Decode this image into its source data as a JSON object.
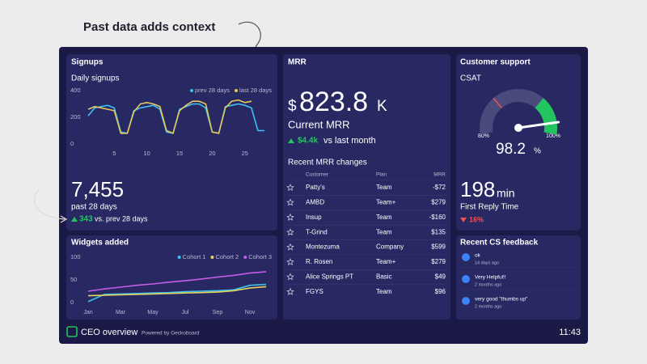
{
  "heading": "Past data adds context",
  "signups": {
    "title": "Signups",
    "subtitle": "Daily signups",
    "chart": {
      "type": "line",
      "x": [
        1,
        2,
        3,
        4,
        5,
        6,
        7,
        8,
        9,
        10,
        11,
        12,
        13,
        14,
        15,
        16,
        17,
        18,
        19,
        20,
        21,
        22,
        23,
        24,
        25,
        26,
        27,
        28
      ],
      "xlim": [
        1,
        28
      ],
      "xticks": [
        5,
        10,
        15,
        20,
        25
      ],
      "ylim": [
        0,
        400
      ],
      "yticks": [
        0,
        200,
        400
      ],
      "series": [
        {
          "name": "prev 28 days",
          "color": "#3ec1f0",
          "values": [
            210,
            270,
            280,
            290,
            270,
            90,
            80,
            250,
            270,
            280,
            290,
            260,
            90,
            80,
            260,
            280,
            300,
            300,
            270,
            90,
            80,
            280,
            290,
            300,
            290,
            270,
            100,
            100
          ]
        },
        {
          "name": "last 28 days",
          "color": "#e3c95c",
          "values": [
            260,
            280,
            270,
            260,
            250,
            80,
            80,
            240,
            300,
            310,
            300,
            280,
            100,
            80,
            250,
            290,
            320,
            320,
            300,
            90,
            80,
            270,
            320,
            330,
            310,
            320,
            null,
            null
          ]
        }
      ]
    },
    "total": "7,455",
    "total_label": "past 28 days",
    "change": "343",
    "change_label": "vs. prev 28 days"
  },
  "widgets": {
    "title": "Widgets added",
    "chart": {
      "type": "line",
      "categories": [
        "Jan",
        null,
        "Mar",
        null,
        "May",
        null,
        "Jul",
        null,
        "Sep",
        null,
        "Nov",
        null
      ],
      "ylim": [
        0,
        100
      ],
      "yticks": [
        0,
        50,
        100
      ],
      "series": [
        {
          "name": "Cohort 1",
          "color": "#3ec1f0",
          "values": [
            2,
            18,
            19,
            20,
            21,
            22,
            24,
            25,
            26,
            28,
            38,
            40
          ]
        },
        {
          "name": "Cohort 2",
          "color": "#e3d45c",
          "values": [
            15,
            16,
            17,
            18,
            19,
            20,
            21,
            22,
            23,
            26,
            32,
            35
          ]
        },
        {
          "name": "Cohort 3",
          "color": "#c45ce6",
          "values": [
            25,
            30,
            34,
            38,
            41,
            45,
            48,
            52,
            56,
            60,
            65,
            68
          ]
        }
      ]
    }
  },
  "mrr": {
    "title": "MRR",
    "prefix": "$",
    "value": "823.8",
    "suffix": "K",
    "label": "Current MRR",
    "change": "$4.4k",
    "change_label": "vs last month",
    "table_title": "Recent MRR changes",
    "table": {
      "headers": [
        "Customer",
        "Plan",
        "MRR"
      ],
      "rows": [
        [
          "Patty's",
          "Team",
          "-$72"
        ],
        [
          "AMBD",
          "Team+",
          "$279"
        ],
        [
          "Insup",
          "Team",
          "-$160"
        ],
        [
          "T-Grind",
          "Team",
          "$135"
        ],
        [
          "Montezuma",
          "Company",
          "$599"
        ],
        [
          "R. Rosen",
          "Team+",
          "$279"
        ],
        [
          "Alice Springs PT",
          "Basic",
          "$49"
        ],
        [
          "FGYS",
          "Team",
          "$96"
        ]
      ]
    }
  },
  "support": {
    "title": "Customer support",
    "csat_label": "CSAT",
    "csat": {
      "value": 98.2,
      "unit": "%",
      "min": {
        "value": 80,
        "label": "80%"
      },
      "max": {
        "value": 100,
        "label": "100%"
      },
      "green_from": 94,
      "red_marker": 86
    },
    "reply_time": "198",
    "reply_unit": "min",
    "reply_label": "First Reply Time",
    "reply_change": "16%"
  },
  "feedback": {
    "title": "Recent CS feedback",
    "items": [
      {
        "text": "ok",
        "time": "14 days ago"
      },
      {
        "text": "Very Helpful!!",
        "time": "2 months ago"
      },
      {
        "text": "very good \"thumbs up\"",
        "time": "2 months ago"
      }
    ]
  },
  "footer": {
    "title": "CEO overview",
    "powered": "Powered by Geckoboard",
    "time": "11:43"
  }
}
